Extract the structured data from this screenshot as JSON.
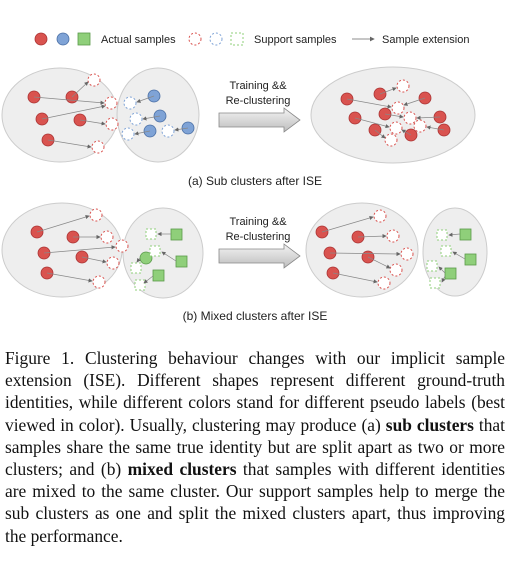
{
  "legend": {
    "actual": "Actual samples",
    "support": "Support samples",
    "extension": "Sample extension"
  },
  "arrow_label": [
    "Training &&",
    "Re-clustering"
  ],
  "panel_a_caption": "(a) Sub clusters after ISE",
  "panel_b_caption": "(b) Mixed clusters after ISE",
  "caption": {
    "p1": "Figure 1. Clustering behaviour changes with our implicit sample extension (ISE). Different shapes represent different ground-truth identities, while different colors stand for different pseudo labels (best viewed in color). Usually, clustering may produce (a) ",
    "b1": "sub clusters",
    "p2": " that samples share the same true identity but are split apart as two or more clusters; and (b) ",
    "b2": "mixed clusters",
    "p3": " that samples with different identities are mixed to the same cluster. Our support samples help to merge the sub clusters as one and split the mixed clusters apart, thus improving the performance."
  },
  "colors": {
    "red": "#d9534f",
    "blue": "#7fa3d6",
    "green": "#8fcf7a",
    "cluster_fill": "#eeeeee"
  }
}
